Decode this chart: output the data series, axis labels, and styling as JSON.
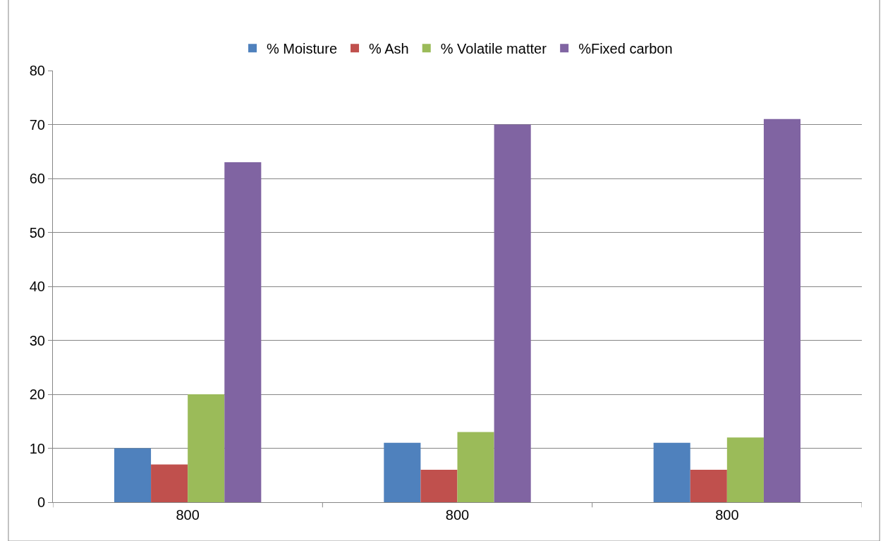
{
  "chart_data": {
    "type": "bar",
    "categories": [
      "800",
      "800",
      "800"
    ],
    "series": [
      {
        "name": "% Moisture",
        "color": "#4f81bd",
        "values": [
          10,
          11,
          11
        ]
      },
      {
        "name": "% Ash",
        "color": "#c0504d",
        "values": [
          7,
          6,
          6
        ]
      },
      {
        "name": "% Volatile matter",
        "color": "#9bbb59",
        "values": [
          20,
          13,
          12
        ]
      },
      {
        "name": "%Fixed carbon",
        "color": "#8064a2",
        "values": [
          63,
          70,
          71
        ]
      }
    ],
    "ylim": [
      0,
      80
    ],
    "yticks": [
      0,
      10,
      20,
      30,
      40,
      50,
      60,
      70,
      80
    ],
    "grid": "y",
    "legend": "top"
  }
}
